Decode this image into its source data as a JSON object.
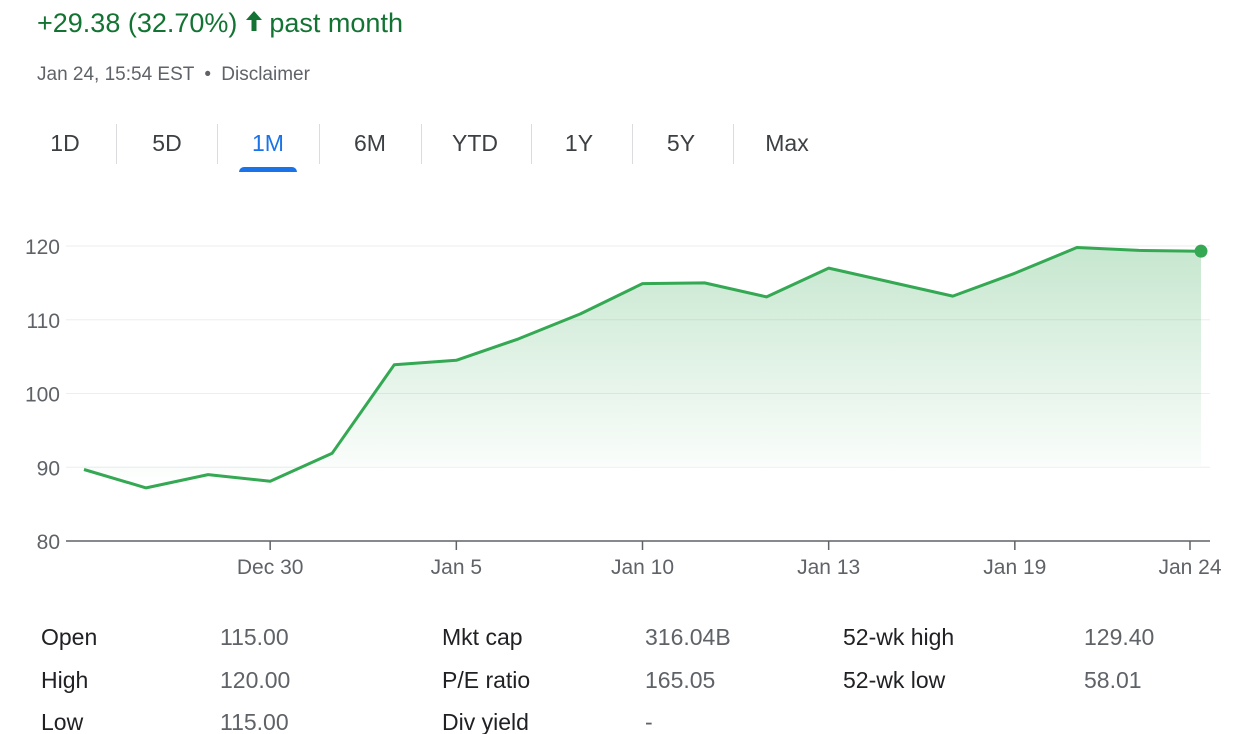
{
  "header": {
    "change_text": "+29.38 (32.70%)",
    "arrow_glyph": "🡅",
    "period_text": "past month",
    "timestamp": "Jan 24, 15:54 EST",
    "separator": "•",
    "disclaimer_link": "Disclaimer"
  },
  "tabs": [
    {
      "label": "1D",
      "active": false
    },
    {
      "label": "5D",
      "active": false
    },
    {
      "label": "1M",
      "active": true
    },
    {
      "label": "6M",
      "active": false
    },
    {
      "label": "YTD",
      "active": false
    },
    {
      "label": "1Y",
      "active": false
    },
    {
      "label": "5Y",
      "active": false
    },
    {
      "label": "Max",
      "active": false
    }
  ],
  "colors": {
    "positive": "#137333",
    "line": "#34a853",
    "tab_active": "#1a73e8",
    "grid": "#ececec"
  },
  "chart_data": {
    "type": "area",
    "ylim": [
      80,
      120
    ],
    "y_ticks": [
      "120",
      "110",
      "100",
      "90",
      "80"
    ],
    "x_tick_labels": [
      "Dec 30",
      "Jan 5",
      "Jan 10",
      "Jan 13",
      "Jan 19",
      "Jan 24"
    ],
    "series": [
      {
        "values": [
          89.7,
          87.2,
          89.0,
          88.1,
          91.9,
          103.9,
          104.5,
          107.4,
          110.8,
          114.9,
          115.0,
          113.1,
          117.0,
          115.1,
          113.2,
          116.3,
          119.8,
          119.4,
          119.3
        ]
      }
    ],
    "grid": true,
    "last_point_marker": true
  },
  "stats": {
    "rows": [
      [
        {
          "label": "Open",
          "value": "115.00"
        },
        {
          "label": "Mkt cap",
          "value": "316.04B"
        },
        {
          "label": "52-wk high",
          "value": "129.40"
        }
      ],
      [
        {
          "label": "High",
          "value": "120.00"
        },
        {
          "label": "P/E ratio",
          "value": "165.05"
        },
        {
          "label": "52-wk low",
          "value": "58.01"
        }
      ],
      [
        {
          "label": "Low",
          "value": "115.00"
        },
        {
          "label": "Div yield",
          "value": "-"
        }
      ]
    ]
  }
}
